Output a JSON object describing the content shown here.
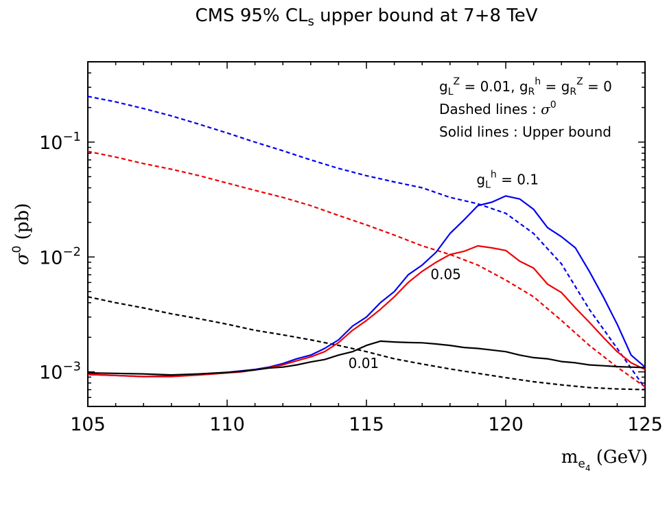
{
  "chart_data": {
    "type": "line",
    "title": {
      "prefix": "CMS 95% CL",
      "sub": "s",
      "suffix": " upper bound at 7+8 TeV"
    },
    "xlabel": {
      "main": "m",
      "sub": "e",
      "subsub": "4",
      "unit": " (GeV)"
    },
    "ylabel": {
      "sym": "σ",
      "sup": "0",
      "unit": " (pb)"
    },
    "xlim": [
      105,
      125
    ],
    "ylim": [
      0.0005,
      0.5
    ],
    "y_scale": "log",
    "x_ticks": [
      105,
      110,
      115,
      120,
      125
    ],
    "x_tick_labels": [
      "105",
      "110",
      "115",
      "120",
      "125"
    ],
    "y_ticks": [
      {
        "value": 0.1,
        "base": "10",
        "exp": "−1"
      },
      {
        "value": 0.01,
        "base": "10",
        "exp": "−2"
      },
      {
        "value": 0.001,
        "base": "10",
        "exp": "−3"
      }
    ],
    "legend": {
      "placement": "top-right",
      "line1": {
        "gL": "g",
        "L": "L",
        "Z": "Z",
        "eq1": " = 0.01, ",
        "gR": "g",
        "R": "R",
        "h": "h",
        "eq2": " = ",
        "gR2": "g",
        "R2": "R",
        "Z2": "Z",
        "eq3": " = 0"
      },
      "line2": {
        "text": "Dashed lines : ",
        "sym": "σ",
        "sup": "0"
      },
      "line3": {
        "text": "Solid lines : Upper bound"
      }
    },
    "annotations": [
      {
        "series": "gLh = 0.1",
        "g": "g",
        "L": "L",
        "h": "h",
        "rest": " = 0.1",
        "x": 118.95,
        "y": 0.043
      },
      {
        "series": "gLh = 0.05",
        "text": "0.05",
        "x": 117.3,
        "y": 0.0064
      },
      {
        "series": "gLh = 0.01",
        "text": "0.01",
        "x": 114.35,
        "y": 0.00108
      }
    ],
    "series": [
      {
        "name": "sigma0 gLh=0.1",
        "style": "dashed",
        "color": "#0000ee",
        "x": [
          105,
          106,
          107,
          108,
          109,
          110,
          111,
          112,
          113,
          114,
          115,
          116,
          117,
          118,
          119,
          120,
          121,
          122,
          123,
          124,
          125
        ],
        "y": [
          0.25,
          0.224,
          0.196,
          0.169,
          0.143,
          0.12,
          0.1,
          0.084,
          0.07,
          0.059,
          0.051,
          0.045,
          0.04,
          0.033,
          0.029,
          0.024,
          0.016,
          0.0087,
          0.0035,
          0.0016,
          0.00072
        ]
      },
      {
        "name": "sigma0 gLh=0.05",
        "style": "dashed",
        "color": "#ee0000",
        "x": [
          105,
          106,
          107,
          108,
          109,
          110,
          111,
          112,
          113,
          114,
          115,
          116,
          117,
          118,
          119,
          120,
          121,
          122,
          123,
          124,
          125
        ],
        "y": [
          0.083,
          0.074,
          0.065,
          0.058,
          0.051,
          0.044,
          0.038,
          0.033,
          0.028,
          0.023,
          0.019,
          0.0155,
          0.0125,
          0.0105,
          0.0085,
          0.0063,
          0.0045,
          0.0028,
          0.0017,
          0.0011,
          0.00074
        ]
      },
      {
        "name": "sigma0 gLh=0.01",
        "style": "dashed",
        "color": "#000000",
        "x": [
          105,
          106,
          107,
          108,
          109,
          110,
          111,
          112,
          113,
          114,
          115,
          116,
          117,
          118,
          119,
          120,
          121,
          122,
          123,
          124,
          125
        ],
        "y": [
          0.0045,
          0.004,
          0.0036,
          0.0032,
          0.0029,
          0.0026,
          0.0023,
          0.0021,
          0.0019,
          0.0017,
          0.0015,
          0.0013,
          0.00117,
          0.00106,
          0.00097,
          0.00089,
          0.00082,
          0.00077,
          0.00073,
          0.00071,
          0.0007
        ]
      },
      {
        "name": "upper bound gLh=0.1",
        "style": "solid",
        "color": "#0000ee",
        "x": [
          105,
          106,
          107,
          108,
          109,
          110,
          110.5,
          111,
          111.5,
          112,
          112.5,
          113,
          113.5,
          114,
          114.5,
          115,
          115.5,
          116,
          116.5,
          117,
          117.5,
          118,
          118.5,
          119,
          119.5,
          120,
          120.5,
          121,
          121.5,
          122,
          122.5,
          123,
          123.5,
          124,
          124.5,
          125
        ],
        "y": [
          0.00095,
          0.00093,
          0.00091,
          0.00092,
          0.00095,
          0.00099,
          0.00102,
          0.00105,
          0.0011,
          0.00118,
          0.0013,
          0.0014,
          0.0016,
          0.0019,
          0.0025,
          0.003,
          0.004,
          0.005,
          0.007,
          0.0085,
          0.011,
          0.016,
          0.021,
          0.028,
          0.03,
          0.034,
          0.032,
          0.026,
          0.018,
          0.015,
          0.012,
          0.0075,
          0.0045,
          0.0026,
          0.0014,
          0.0011
        ]
      },
      {
        "name": "upper bound gLh=0.05",
        "style": "solid",
        "color": "#ee0000",
        "x": [
          105,
          106,
          107,
          108,
          109,
          110,
          110.5,
          111,
          111.5,
          112,
          112.5,
          113,
          113.5,
          114,
          114.5,
          115,
          115.5,
          116,
          116.5,
          117,
          117.5,
          118,
          118.5,
          119,
          119.5,
          120,
          120.5,
          121,
          121.5,
          122,
          122.5,
          123,
          123.5,
          124,
          124.5,
          125
        ],
        "y": [
          0.00095,
          0.00093,
          0.00091,
          0.00091,
          0.00094,
          0.00098,
          0.001,
          0.00104,
          0.00109,
          0.00115,
          0.00125,
          0.00135,
          0.0015,
          0.0018,
          0.0023,
          0.0028,
          0.0035,
          0.0045,
          0.006,
          0.0075,
          0.009,
          0.0105,
          0.0112,
          0.0125,
          0.012,
          0.0114,
          0.0092,
          0.008,
          0.0058,
          0.0049,
          0.0036,
          0.0027,
          0.002,
          0.0015,
          0.0012,
          0.00105
        ]
      },
      {
        "name": "upper bound gLh=0.01",
        "style": "solid",
        "color": "#000000",
        "x": [
          105,
          106,
          107,
          108,
          109,
          110,
          110.5,
          111,
          111.5,
          112,
          112.5,
          113,
          113.5,
          114,
          114.5,
          115,
          115.5,
          116,
          116.5,
          117,
          117.5,
          118,
          118.5,
          119,
          119.5,
          120,
          120.5,
          121,
          121.5,
          122,
          122.5,
          123,
          123.5,
          124,
          124.5,
          125
        ],
        "y": [
          0.00098,
          0.00097,
          0.00096,
          0.00094,
          0.00096,
          0.00099,
          0.00101,
          0.00104,
          0.00108,
          0.0011,
          0.00115,
          0.00122,
          0.00128,
          0.0014,
          0.0015,
          0.0017,
          0.00185,
          0.00182,
          0.0018,
          0.00179,
          0.00175,
          0.0017,
          0.00163,
          0.0016,
          0.00155,
          0.0015,
          0.0014,
          0.00133,
          0.0013,
          0.00123,
          0.0012,
          0.00115,
          0.00113,
          0.00111,
          0.0011,
          0.00109
        ]
      }
    ]
  }
}
